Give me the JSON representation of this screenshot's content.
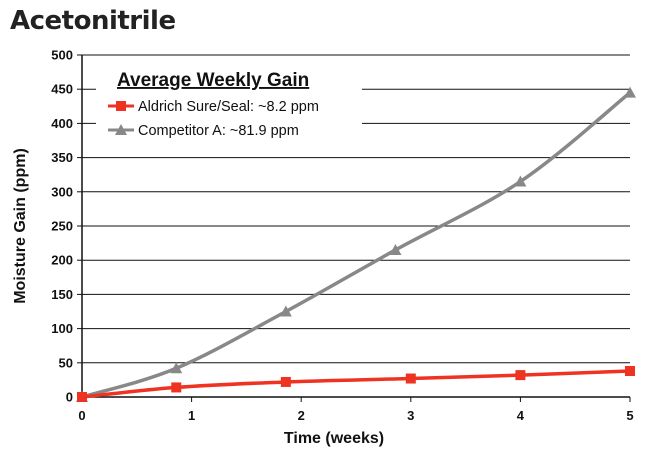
{
  "page_title": "Acetonitrile",
  "chart_data": {
    "type": "line",
    "title": "",
    "xlabel": "Time (weeks)",
    "ylabel": "Moisture Gain (ppm)",
    "xlim": [
      0,
      5
    ],
    "ylim": [
      0,
      500
    ],
    "x_ticks": [
      "0",
      "1",
      "2",
      "3",
      "4",
      "5"
    ],
    "y_ticks": [
      "0",
      "50",
      "100",
      "150",
      "200",
      "250",
      "300",
      "350",
      "400",
      "450",
      "500"
    ],
    "grid": "horizontal",
    "legend": {
      "title": "Average Weekly Gain",
      "placement": "top-left"
    },
    "series": [
      {
        "name": "Aldrich Sure/Seal: ~8.2 ppm",
        "color": "#ee3322",
        "marker": "square",
        "x": [
          0,
          0.86,
          1.86,
          3.0,
          4.0,
          5.0
        ],
        "y": [
          0,
          14,
          22,
          27,
          32,
          38
        ]
      },
      {
        "name": "Competitor A: ~81.9 ppm",
        "color": "#888888",
        "marker": "triangle",
        "x": [
          0,
          0.86,
          1.86,
          2.86,
          4.0,
          5.0
        ],
        "y": [
          0,
          42,
          125,
          215,
          315,
          445
        ]
      }
    ]
  }
}
